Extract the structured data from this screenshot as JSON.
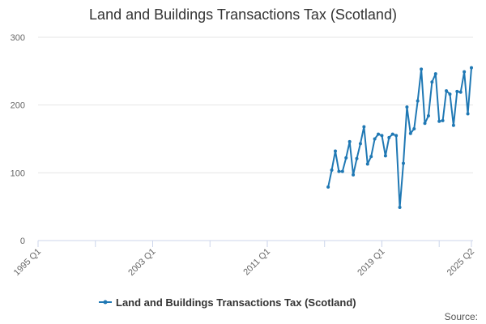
{
  "chart_data": {
    "type": "line",
    "title": "Land and Buildings Transactions Tax (Scotland)",
    "xlabel": "",
    "ylabel": "",
    "ylim": [
      0,
      300
    ],
    "y_ticks": [
      0,
      100,
      200,
      300
    ],
    "x_tick_labels": [
      "1995 Q1",
      "2003 Q1",
      "2011 Q1",
      "2019 Q1",
      "2025 Q2"
    ],
    "grid": true,
    "legend_position": "bottom-center",
    "credits": "Source:",
    "colors": {
      "series": "#1f78b4",
      "grid": "#e6e6e6",
      "axis": "#ccd6eb"
    },
    "x_first_label": "1995 Q1",
    "x_last_label": "2025 Q2",
    "series": [
      {
        "name": "Land and Buildings Transactions Tax (Scotland)",
        "x": [
          "2015 Q2",
          "2015 Q3",
          "2015 Q4",
          "2016 Q1",
          "2016 Q2",
          "2016 Q3",
          "2016 Q4",
          "2017 Q1",
          "2017 Q2",
          "2017 Q3",
          "2017 Q4",
          "2018 Q1",
          "2018 Q2",
          "2018 Q3",
          "2018 Q4",
          "2019 Q1",
          "2019 Q2",
          "2019 Q3",
          "2019 Q4",
          "2020 Q1",
          "2020 Q2",
          "2020 Q3",
          "2020 Q4",
          "2021 Q1",
          "2021 Q2",
          "2021 Q3",
          "2021 Q4",
          "2022 Q1",
          "2022 Q2",
          "2022 Q3",
          "2022 Q4",
          "2023 Q1",
          "2023 Q2",
          "2023 Q3",
          "2023 Q4",
          "2024 Q1",
          "2024 Q2",
          "2024 Q3",
          "2024 Q4",
          "2025 Q1",
          "2025 Q2"
        ],
        "values": [
          79,
          104,
          132,
          102,
          102,
          122,
          146,
          97,
          121,
          143,
          168,
          113,
          124,
          150,
          157,
          155,
          125,
          152,
          157,
          155,
          49,
          114,
          197,
          158,
          165,
          206,
          253,
          173,
          184,
          234,
          246,
          176,
          177,
          221,
          216,
          170,
          220,
          219,
          249,
          187,
          255
        ]
      }
    ]
  }
}
